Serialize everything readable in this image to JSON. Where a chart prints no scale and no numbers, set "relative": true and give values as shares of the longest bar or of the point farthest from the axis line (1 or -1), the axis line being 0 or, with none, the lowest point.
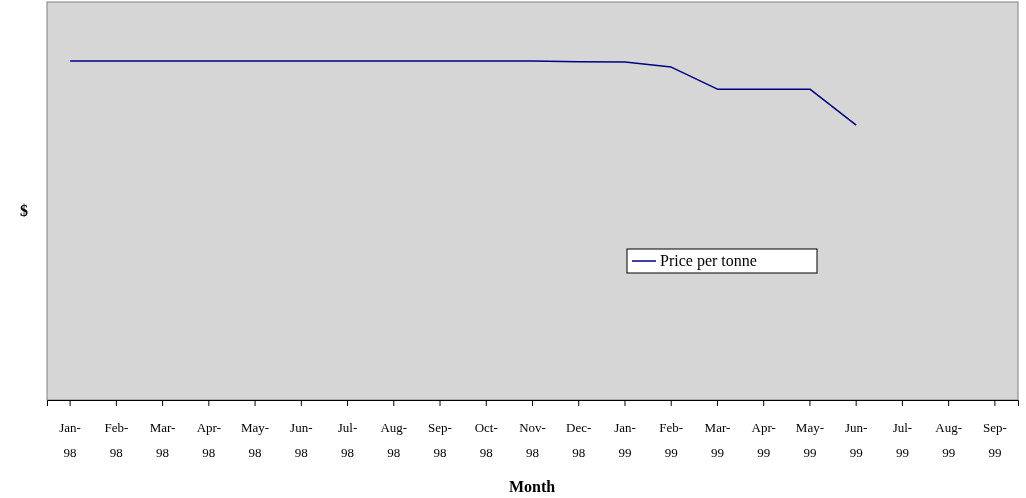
{
  "chart_data": {
    "type": "line",
    "relative": true,
    "xlabel": "Month",
    "ylabel": "$",
    "categories": [
      "Jan-98",
      "Feb-98",
      "Mar-98",
      "Apr-98",
      "May-98",
      "Jun-98",
      "Jul-98",
      "Aug-98",
      "Sep-98",
      "Oct-98",
      "Nov-98",
      "Dec-98",
      "Jan-99",
      "Feb-99",
      "Mar-99",
      "Apr-99",
      "May-99",
      "Jun-99",
      "Jul-99",
      "Aug-99",
      "Sep-99"
    ],
    "series": [
      {
        "name": "Price per tonne",
        "color": "#000080",
        "values": [
          1,
          1,
          1,
          1,
          1,
          1,
          1,
          1,
          1,
          1,
          1,
          0.998,
          0.997,
          0.982,
          0.917,
          0.917,
          0.917,
          0.811,
          null,
          null,
          null
        ]
      }
    ],
    "legend": "right",
    "marker": "none",
    "line_style": "solid"
  }
}
